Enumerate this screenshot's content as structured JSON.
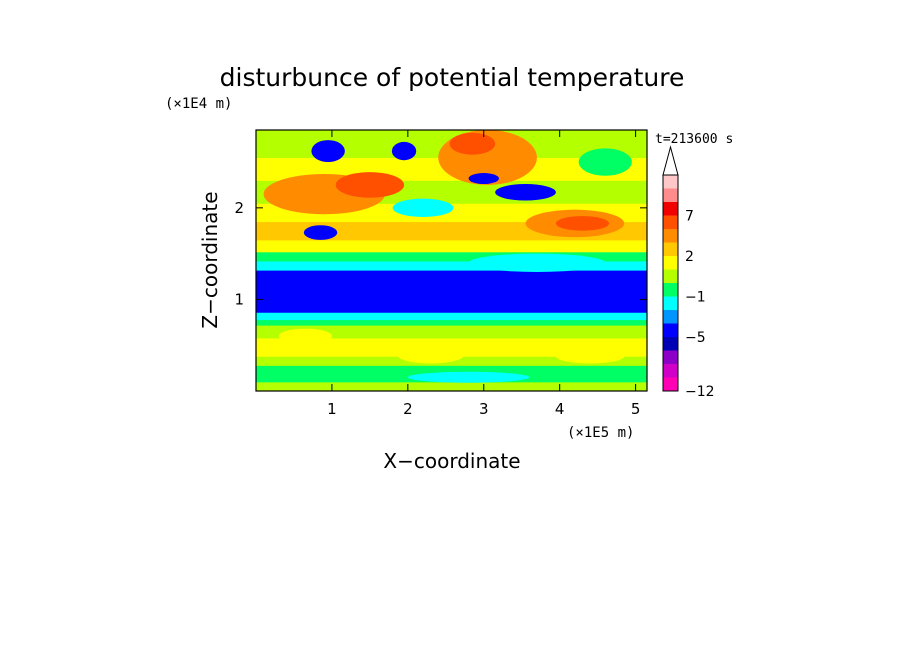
{
  "chart_data": {
    "type": "heatmap",
    "title": "disturbunce of potential temperature",
    "xlabel": "X−coordinate",
    "ylabel": "Z−coordinate",
    "x_unit": "(×1E5 m)",
    "y_unit": "(×1E4 m)",
    "time_label": "t=213600 s",
    "xlim": [
      0,
      5.15
    ],
    "ylim": [
      0,
      2.85
    ],
    "x_ticks": [
      1,
      2,
      3,
      4,
      5
    ],
    "y_ticks": [
      1,
      2
    ],
    "colorbar": {
      "levels": [
        -12,
        -11,
        -9,
        -7,
        -5,
        -3,
        -2,
        -1,
        0,
        1,
        2,
        3,
        5,
        7,
        9,
        11
      ],
      "colors": [
        "#ff00b4",
        "#d000c8",
        "#8c00c8",
        "#0000b4",
        "#0000ff",
        "#0096ff",
        "#00ffff",
        "#00ff64",
        "#b4ff00",
        "#ffff00",
        "#ffc800",
        "#ff8c00",
        "#ff5000",
        "#f00000",
        "#ff8c8c",
        "#ffc8c8"
      ],
      "labels": [
        {
          "value": -12,
          "text": "−12"
        },
        {
          "value": -5,
          "text": "−5"
        },
        {
          "value": -1,
          "text": "−1"
        },
        {
          "value": 2,
          "text": "2"
        },
        {
          "value": 7,
          "text": "7"
        }
      ],
      "extend": "max"
    },
    "bands": [
      {
        "z_min": 0.0,
        "z_max": 0.1,
        "value": 0.3
      },
      {
        "z_min": 0.1,
        "z_max": 0.28,
        "value": -0.5
      },
      {
        "z_min": 0.28,
        "z_max": 0.38,
        "value": 0.5
      },
      {
        "z_min": 0.38,
        "z_max": 0.58,
        "value": 1.5
      },
      {
        "z_min": 0.58,
        "z_max": 0.72,
        "value": 0.5
      },
      {
        "z_min": 0.72,
        "z_max": 0.78,
        "value": -0.5
      },
      {
        "z_min": 0.78,
        "z_max": 0.86,
        "value": -1.5
      },
      {
        "z_min": 0.86,
        "z_max": 0.95,
        "value": -3.5
      },
      {
        "z_min": 0.95,
        "z_max": 1.25,
        "value": -4.5
      },
      {
        "z_min": 1.25,
        "z_max": 1.32,
        "value": -3.5
      },
      {
        "z_min": 1.32,
        "z_max": 1.42,
        "value": -1.5
      },
      {
        "z_min": 1.42,
        "z_max": 1.52,
        "value": -0.5
      },
      {
        "z_min": 1.52,
        "z_max": 1.65,
        "value": 1.5
      },
      {
        "z_min": 1.65,
        "z_max": 1.85,
        "value": 2.5
      },
      {
        "z_min": 1.85,
        "z_max": 2.05,
        "value": 1.5
      },
      {
        "z_min": 2.05,
        "z_max": 2.3,
        "value": 0.5
      },
      {
        "z_min": 2.3,
        "z_max": 2.55,
        "value": 1.5
      },
      {
        "z_min": 2.55,
        "z_max": 2.85,
        "value": 0.5
      }
    ],
    "features": [
      {
        "x": 0.95,
        "z": 2.62,
        "rx": 0.22,
        "rz": 0.12,
        "value": -4.5
      },
      {
        "x": 1.95,
        "z": 2.62,
        "rx": 0.16,
        "rz": 0.1,
        "value": -4.5
      },
      {
        "x": 3.05,
        "z": 2.55,
        "rx": 0.65,
        "rz": 0.3,
        "value": 4.0
      },
      {
        "x": 2.85,
        "z": 2.7,
        "rx": 0.3,
        "rz": 0.12,
        "value": 6.0
      },
      {
        "x": 0.9,
        "z": 2.15,
        "rx": 0.8,
        "rz": 0.22,
        "value": 3.5
      },
      {
        "x": 1.5,
        "z": 2.25,
        "rx": 0.45,
        "rz": 0.14,
        "value": 5.0
      },
      {
        "x": 0.85,
        "z": 1.73,
        "rx": 0.22,
        "rz": 0.08,
        "value": -4.5
      },
      {
        "x": 4.2,
        "z": 1.83,
        "rx": 0.65,
        "rz": 0.15,
        "value": 3.5
      },
      {
        "x": 4.3,
        "z": 1.83,
        "rx": 0.35,
        "rz": 0.08,
        "value": 5.0
      },
      {
        "x": 3.55,
        "z": 2.17,
        "rx": 0.4,
        "rz": 0.09,
        "value": -4.5
      },
      {
        "x": 2.2,
        "z": 2.0,
        "rx": 0.4,
        "rz": 0.1,
        "value": -1.5
      },
      {
        "x": 3.0,
        "z": 2.32,
        "rx": 0.2,
        "rz": 0.06,
        "value": -4.5
      },
      {
        "x": 4.6,
        "z": 2.5,
        "rx": 0.35,
        "rz": 0.15,
        "value": -0.5
      },
      {
        "x": 2.3,
        "z": 0.4,
        "rx": 0.45,
        "rz": 0.1,
        "value": 1.5
      },
      {
        "x": 4.4,
        "z": 0.38,
        "rx": 0.45,
        "rz": 0.08,
        "value": 1.5
      },
      {
        "x": 0.65,
        "z": 0.6,
        "rx": 0.35,
        "rz": 0.08,
        "value": 1.5
      },
      {
        "x": 2.8,
        "z": 0.15,
        "rx": 0.8,
        "rz": 0.06,
        "value": -1.5
      },
      {
        "x": 3.7,
        "z": 1.4,
        "rx": 0.9,
        "rz": 0.1,
        "value": -1.5
      }
    ]
  }
}
